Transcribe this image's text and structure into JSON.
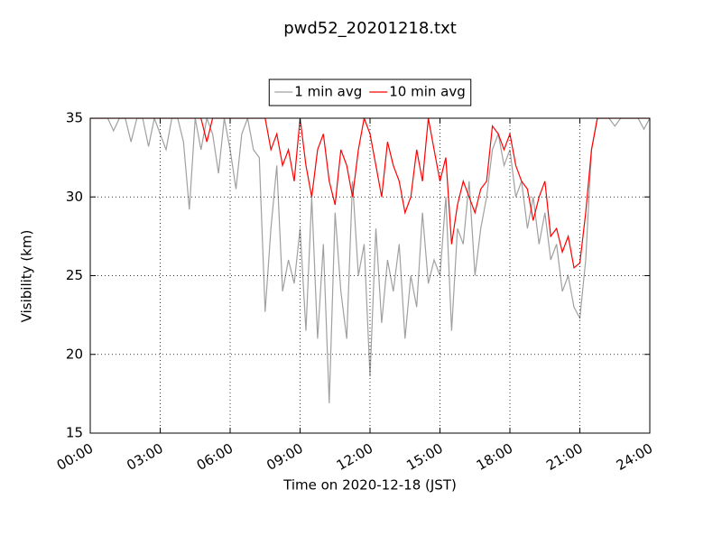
{
  "chart_data": {
    "type": "line",
    "title": "pwd52_20201218.txt",
    "x_label": "Time on 2020-12-18 (JST)",
    "y_label": "Visibility (km)",
    "x": [
      0,
      0.25,
      0.5,
      0.75,
      1,
      1.25,
      1.5,
      1.75,
      2,
      2.25,
      2.5,
      2.75,
      3,
      3.25,
      3.5,
      3.75,
      4,
      4.25,
      4.5,
      4.75,
      5,
      5.25,
      5.5,
      5.75,
      6,
      6.25,
      6.5,
      6.75,
      7,
      7.25,
      7.5,
      7.75,
      8,
      8.25,
      8.5,
      8.75,
      9,
      9.25,
      9.5,
      9.75,
      10,
      10.25,
      10.5,
      10.75,
      11,
      11.25,
      11.5,
      11.75,
      12,
      12.25,
      12.5,
      12.75,
      13,
      13.25,
      13.5,
      13.75,
      14,
      14.25,
      14.5,
      14.75,
      15,
      15.25,
      15.5,
      15.75,
      16,
      16.25,
      16.5,
      16.75,
      17,
      17.25,
      17.5,
      17.75,
      18,
      18.25,
      18.5,
      18.75,
      19,
      19.25,
      19.5,
      19.75,
      20,
      20.25,
      20.5,
      20.75,
      21,
      21.25,
      21.5,
      21.75,
      22,
      22.25,
      22.5,
      22.75,
      23,
      23.25,
      23.5,
      23.75,
      24
    ],
    "series": [
      {
        "name": "1 min avg",
        "color": "#a0a0a0",
        "values": [
          35,
          35,
          35,
          35,
          34.2,
          35,
          35,
          33.5,
          35,
          35,
          33.2,
          35,
          34,
          33,
          35,
          35,
          33.5,
          29.2,
          35,
          33,
          35,
          34,
          31.5,
          35,
          33,
          30.5,
          34,
          35,
          33,
          32.5,
          22.7,
          28,
          32,
          24,
          26,
          24.5,
          28,
          21.5,
          30,
          21,
          27,
          16.9,
          29,
          24,
          21,
          31,
          25,
          27,
          18.6,
          28,
          22,
          26,
          24,
          27,
          21,
          25,
          23,
          29,
          24.5,
          26,
          25,
          30,
          21.5,
          28,
          27,
          31,
          25,
          28,
          30,
          33,
          34,
          32,
          33,
          30,
          31,
          28,
          30,
          27,
          29,
          26,
          27,
          24,
          25,
          23,
          22.3,
          26,
          33,
          35,
          35,
          35,
          34.5,
          35,
          35,
          35,
          35,
          34.3,
          35
        ]
      },
      {
        "name": "10 min avg",
        "color": "#ff0000",
        "values": [
          35,
          35,
          35,
          35,
          35,
          35,
          35,
          35,
          35,
          35,
          35,
          35,
          35,
          35,
          35,
          35,
          35,
          35,
          35,
          35,
          33.5,
          35,
          35,
          35,
          35,
          35,
          35,
          35,
          35,
          35,
          35,
          33,
          34,
          32,
          33,
          31,
          35,
          32,
          30,
          33,
          34,
          31,
          29.5,
          33,
          32,
          30,
          33,
          35,
          34,
          32,
          30,
          33.5,
          32,
          31,
          29,
          30,
          33,
          31,
          35,
          33,
          31,
          32.5,
          27,
          29.5,
          31,
          30,
          29,
          30.5,
          31,
          34.5,
          34,
          33,
          34,
          32,
          31,
          30.5,
          28.5,
          30,
          31,
          27.5,
          28,
          26.5,
          27.5,
          25.5,
          25.8,
          29,
          33,
          35,
          35,
          35,
          35,
          35,
          35,
          35,
          35,
          35,
          35
        ]
      }
    ],
    "xlim": [
      0,
      24
    ],
    "xticks": [
      {
        "value": 0,
        "label": "00:00"
      },
      {
        "value": 3,
        "label": "03:00"
      },
      {
        "value": 6,
        "label": "06:00"
      },
      {
        "value": 9,
        "label": "09:00"
      },
      {
        "value": 12,
        "label": "12:00"
      },
      {
        "value": 15,
        "label": "15:00"
      },
      {
        "value": 18,
        "label": "18:00"
      },
      {
        "value": 21,
        "label": "21:00"
      },
      {
        "value": 24,
        "label": "24:00"
      }
    ],
    "ylim": [
      15,
      35
    ],
    "yticks": [
      15,
      20,
      25,
      30,
      35
    ],
    "grid": true,
    "legend": "top"
  }
}
